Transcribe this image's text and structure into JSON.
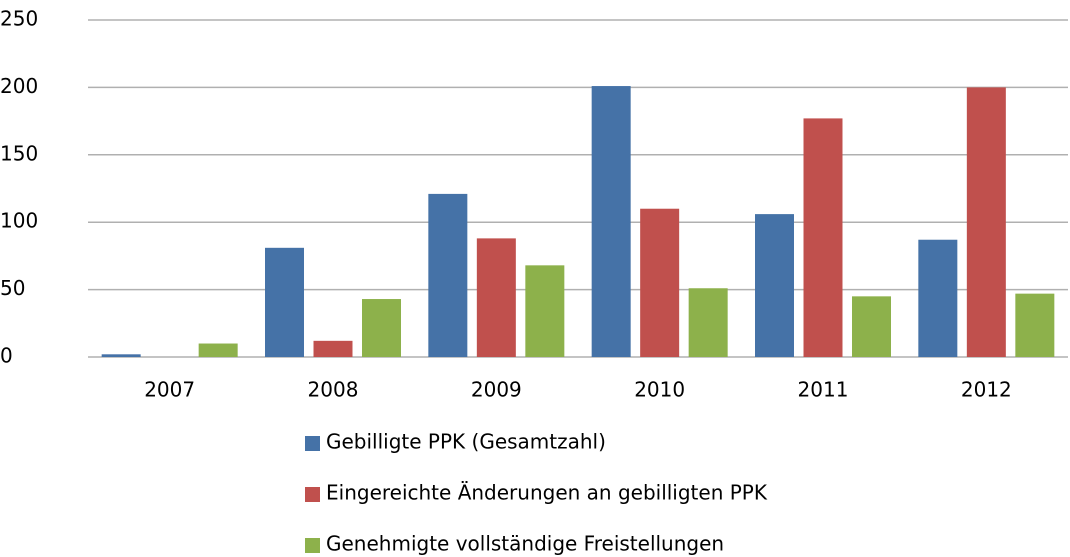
{
  "chart_data": {
    "type": "bar",
    "categories": [
      "2007",
      "2008",
      "2009",
      "2010",
      "2011",
      "2012"
    ],
    "series": [
      {
        "name": "Gebilligte PPK (Gesamtzahl)",
        "color": "#4572a7",
        "values": [
          2,
          81,
          121,
          201,
          106,
          87
        ]
      },
      {
        "name": "Eingereichte Änderungen an gebilligten PPK",
        "color": "#c0504d",
        "values": [
          0,
          12,
          88,
          110,
          177,
          200
        ]
      },
      {
        "name": "Genehmigte vollständige Freistellungen",
        "color": "#8db14b",
        "values": [
          10,
          43,
          68,
          51,
          45,
          47
        ]
      }
    ],
    "ylim": [
      0,
      250
    ],
    "yticks": [
      0,
      50,
      100,
      150,
      200,
      250
    ],
    "grid": true,
    "legend": "bottom"
  }
}
